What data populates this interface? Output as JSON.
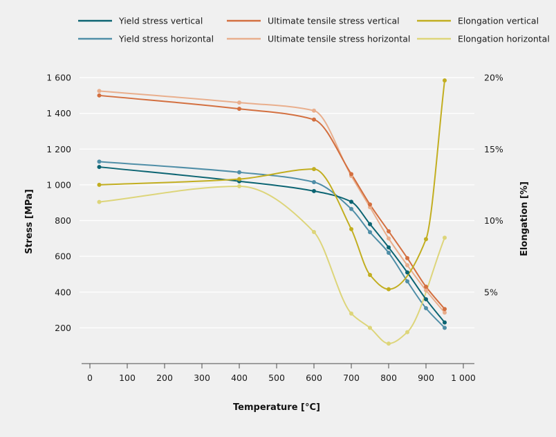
{
  "chart_data": {
    "type": "line",
    "xlabel": "Temperature [°C]",
    "ylabel": "Stress [MPa]",
    "y2label": "Elongation [%]",
    "xlim": [
      0,
      1000
    ],
    "ylim": [
      0,
      1600
    ],
    "y2lim": [
      0,
      20
    ],
    "xticks": [
      "0",
      "100",
      "200",
      "300",
      "400",
      "500",
      "600",
      "700",
      "800",
      "900",
      "1 000"
    ],
    "xtick_values": [
      0,
      100,
      200,
      300,
      400,
      500,
      600,
      700,
      800,
      900,
      1000
    ],
    "yticks": [
      "200",
      "400",
      "600",
      "800",
      "1 000",
      "1 200",
      "1 400",
      "1 600"
    ],
    "ytick_values": [
      200,
      400,
      600,
      800,
      1000,
      1200,
      1400,
      1600
    ],
    "y2ticks": [
      "5%",
      "10%",
      "15%",
      "20%"
    ],
    "y2tick_values": [
      5,
      10,
      15,
      20
    ],
    "grid": "horizontal",
    "legend_position": "top",
    "series": [
      {
        "name": "Yield stress vertical",
        "axis": "left",
        "color": "#0b6472",
        "x": [
          25,
          400,
          600,
          700,
          750,
          800,
          850,
          900,
          950
        ],
        "values": [
          1100,
          1020,
          965,
          905,
          780,
          650,
          510,
          360,
          230
        ]
      },
      {
        "name": "Yield stress horizontal",
        "axis": "left",
        "color": "#4f8ea7",
        "x": [
          25,
          400,
          600,
          700,
          750,
          800,
          850,
          900,
          950
        ],
        "values": [
          1130,
          1070,
          1015,
          865,
          735,
          620,
          460,
          310,
          200
        ]
      },
      {
        "name": "Ultimate tensile stress vertical",
        "axis": "left",
        "color": "#d36f3f",
        "x": [
          25,
          400,
          600,
          700,
          750,
          800,
          850,
          900,
          950
        ],
        "values": [
          1500,
          1425,
          1365,
          1060,
          890,
          740,
          590,
          430,
          305
        ]
      },
      {
        "name": "Ultimate tensile stress horizontal",
        "axis": "left",
        "color": "#e9ae8c",
        "x": [
          25,
          400,
          600,
          700,
          750,
          800,
          850,
          900,
          950
        ],
        "values": [
          1525,
          1460,
          1415,
          1050,
          875,
          700,
          550,
          410,
          285
        ]
      },
      {
        "name": "Elongation vertical",
        "axis": "right",
        "color": "#c2ae20",
        "x": [
          25,
          400,
          600,
          700,
          750,
          800,
          900,
          950
        ],
        "values": [
          12.5,
          12.9,
          13.6,
          9.4,
          6.2,
          5.2,
          8.7,
          19.8
        ]
      },
      {
        "name": "Elongation horizontal",
        "axis": "right",
        "color": "#ddd57a",
        "x": [
          25,
          400,
          600,
          700,
          750,
          800,
          850,
          950
        ],
        "values": [
          11.3,
          12.4,
          9.2,
          3.5,
          2.5,
          1.4,
          2.2,
          8.8
        ]
      }
    ]
  }
}
